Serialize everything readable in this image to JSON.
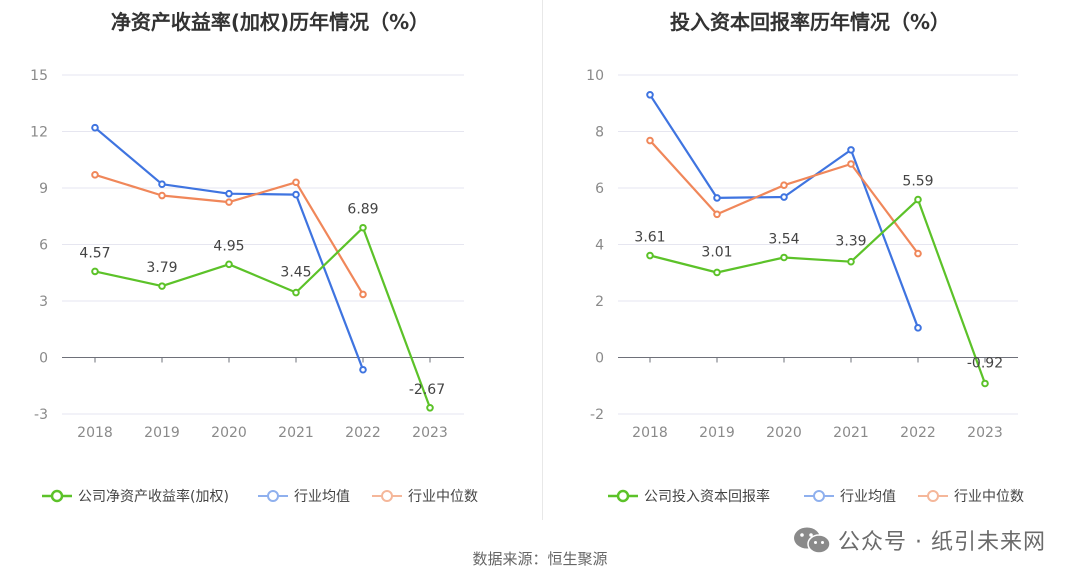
{
  "charts": [
    {
      "id": "roe",
      "title": "净资产收益率(加权)历年情况（%）",
      "legend": [
        "公司净资产收益率(加权)",
        "行业均值",
        "行业中位数"
      ]
    },
    {
      "id": "roic",
      "title": "投入资本回报率历年情况（%）",
      "legend": [
        "公司投入资本回报率",
        "行业均值",
        "行业中位数"
      ]
    }
  ],
  "chart_data": [
    {
      "type": "line",
      "title": "净资产收益率(加权)历年情况（%）",
      "categories": [
        "2018",
        "2019",
        "2020",
        "2021",
        "2022",
        "2023"
      ],
      "ylim": [
        -3,
        15
      ],
      "yticks": [
        -3,
        0,
        3,
        6,
        9,
        12,
        15
      ],
      "series": [
        {
          "name": "公司净资产收益率(加权)",
          "color": "#5cc229",
          "values": [
            4.57,
            3.79,
            4.95,
            3.45,
            6.89,
            -2.67
          ],
          "labels": [
            "4.57",
            "3.79",
            "4.95",
            "3.45",
            "6.89",
            "-2.67"
          ]
        },
        {
          "name": "行业均值",
          "color": "#3f74e0",
          "values": [
            12.2,
            9.2,
            8.7,
            8.65,
            -0.65,
            null
          ]
        },
        {
          "name": "行业中位数",
          "color": "#f0875a",
          "values": [
            9.7,
            8.6,
            8.25,
            9.3,
            3.35,
            null
          ]
        }
      ]
    },
    {
      "type": "line",
      "title": "投入资本回报率历年情况（%）",
      "categories": [
        "2018",
        "2019",
        "2020",
        "2021",
        "2022",
        "2023"
      ],
      "ylim": [
        -2,
        10
      ],
      "yticks": [
        -2,
        0,
        2,
        4,
        6,
        8,
        10
      ],
      "series": [
        {
          "name": "公司投入资本回报率",
          "color": "#5cc229",
          "values": [
            3.61,
            3.01,
            3.54,
            3.39,
            5.59,
            -0.92
          ],
          "labels": [
            "3.61",
            "3.01",
            "3.54",
            "3.39",
            "5.59",
            "-0.92"
          ]
        },
        {
          "name": "行业均值",
          "color": "#3f74e0",
          "values": [
            9.3,
            5.65,
            5.68,
            7.35,
            1.05,
            null
          ]
        },
        {
          "name": "行业中位数",
          "color": "#f0875a",
          "values": [
            7.68,
            5.07,
            6.1,
            6.85,
            3.68,
            null
          ]
        }
      ]
    }
  ],
  "footer": {
    "source": "数据来源：恒生聚源",
    "watermark": "公众号 · 纸引未来网"
  },
  "colors": {
    "company": "#5cc229",
    "mean": "#3f74e0",
    "median": "#f0875a",
    "grid": "#e6e6f0",
    "axis": "#8a8a8a"
  }
}
